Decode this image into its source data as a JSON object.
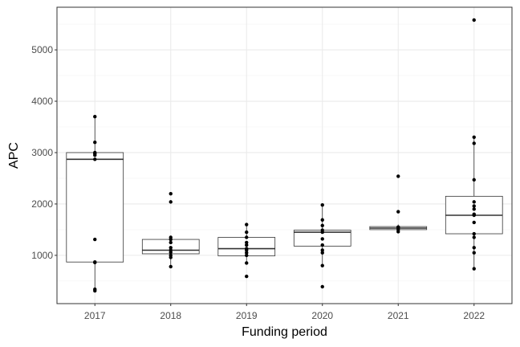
{
  "chart_data": {
    "type": "box",
    "xlabel": "Funding period",
    "ylabel": "APC",
    "ylim": [
      60,
      5830
    ],
    "yticks": [
      1000,
      2000,
      3000,
      4000,
      5000
    ],
    "grid": true,
    "legend": "none",
    "colors": {
      "box_stroke": "#333333",
      "points": "#000000",
      "grid_major": "#ebebeb",
      "grid_minor": "#f5f5f5",
      "panel_border": "#333333"
    },
    "categories": [
      "2017",
      "2018",
      "2019",
      "2020",
      "2021",
      "2022"
    ],
    "boxes": [
      {
        "category": "2017",
        "min": 300,
        "q1": 870,
        "median": 2870,
        "q3": 3000,
        "max": 3700
      },
      {
        "category": "2018",
        "min": 780,
        "q1": 1030,
        "median": 1100,
        "q3": 1310,
        "max": 1370
      },
      {
        "category": "2019",
        "min": 850,
        "q1": 990,
        "median": 1130,
        "q3": 1350,
        "max": 1600
      },
      {
        "category": "2020",
        "min": 800,
        "q1": 1180,
        "median": 1450,
        "q3": 1490,
        "max": 1980
      },
      {
        "category": "2021",
        "min": 1450,
        "q1": 1500,
        "median": 1530,
        "q3": 1560,
        "max": 1600
      },
      {
        "category": "2022",
        "min": 740,
        "q1": 1420,
        "median": 1780,
        "q3": 2150,
        "max": 3300
      }
    ],
    "points": [
      {
        "category": "2017",
        "values": [
          3700,
          3200,
          3000,
          2980,
          2950,
          2870,
          1310,
          870,
          860,
          340,
          310
        ]
      },
      {
        "category": "2018",
        "values": [
          2200,
          2040,
          1350,
          1310,
          1250,
          1150,
          1100,
          1060,
          1000,
          960,
          780
        ]
      },
      {
        "category": "2019",
        "values": [
          1600,
          1450,
          1350,
          1250,
          1200,
          1130,
          1100,
          1050,
          1000,
          850,
          590
        ]
      },
      {
        "category": "2020",
        "values": [
          1980,
          1690,
          1580,
          1490,
          1450,
          1320,
          1200,
          1100,
          1050,
          800,
          390
        ]
      },
      {
        "category": "2021",
        "values": [
          2540,
          1850,
          1550,
          1530,
          1500,
          1460
        ]
      },
      {
        "category": "2022",
        "values": [
          5580,
          3300,
          3180,
          2470,
          2040,
          1960,
          1900,
          1800,
          1780,
          1640,
          1420,
          1350,
          1150,
          1050,
          740
        ]
      }
    ]
  }
}
